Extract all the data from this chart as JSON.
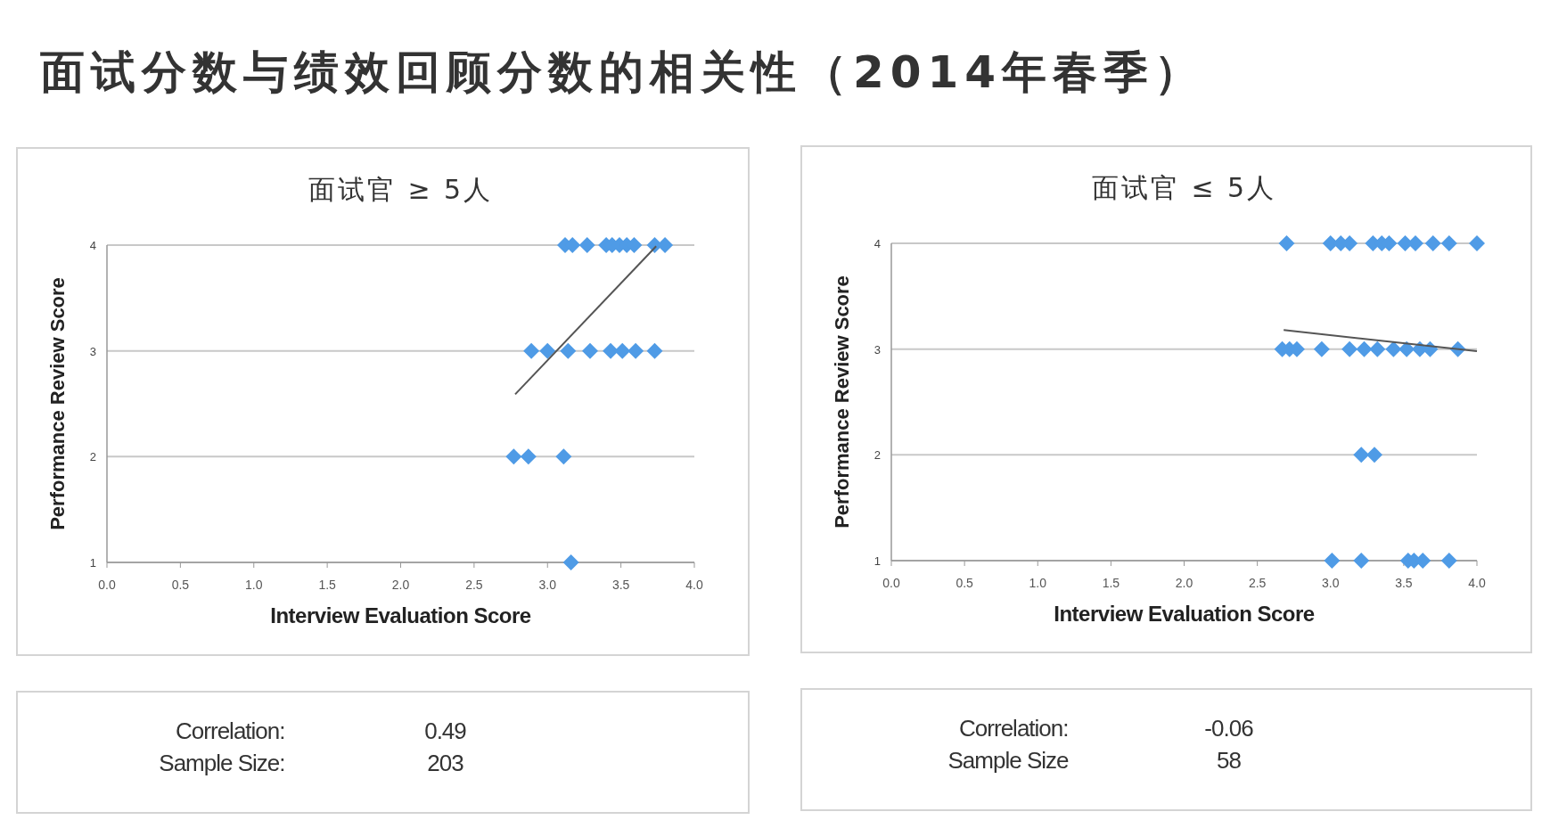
{
  "chart_data": [
    {
      "type": "other",
      "title": "面试分数与绩效回顾分数的相关性（2014年春季）"
    },
    {
      "type": "scatter",
      "title": "面试官 ≥ 5人",
      "xlabel": "Interview Evaluation Score",
      "ylabel": "Performance Review Score",
      "xlim": [
        0,
        4
      ],
      "ylim": [
        1,
        4
      ],
      "xticks": [
        {
          "value": 0,
          "label": "0.0"
        },
        {
          "value": 0.5,
          "label": "0.5"
        },
        {
          "value": 1,
          "label": "1.0"
        },
        {
          "value": 1.5,
          "label": "1.5"
        },
        {
          "value": 2,
          "label": "2.0"
        },
        {
          "value": 2.5,
          "label": "2.5"
        },
        {
          "value": 3,
          "label": "3.0"
        },
        {
          "value": 3.5,
          "label": "3.5"
        },
        {
          "value": 4,
          "label": "4.0"
        }
      ],
      "yticks": [
        1,
        2,
        3,
        4
      ],
      "grid": "y",
      "marker": "diamond",
      "series": [
        {
          "color": "#4f9be6",
          "x": [
            3.12,
            3.17,
            3.27,
            3.4,
            3.44,
            3.49,
            3.54,
            3.59,
            3.73,
            3.8,
            2.89,
            3.0,
            3.14,
            3.29,
            3.43,
            3.51,
            3.6,
            3.73,
            2.77,
            2.87,
            3.11,
            3.16
          ],
          "values": [
            4,
            4,
            4,
            4,
            4,
            4,
            4,
            4,
            4,
            4,
            3,
            3,
            3,
            3,
            3,
            3,
            3,
            3,
            2,
            2,
            2,
            1
          ]
        },
        {
          "type": "line",
          "color": "#555555",
          "marker": "none",
          "x": [
            2.78,
            3.74
          ],
          "values": [
            2.59,
            3.99
          ]
        }
      ]
    },
    {
      "type": "scatter",
      "title": "面试官 ≤ 5人",
      "xlabel": "Interview Evaluation Score",
      "ylabel": "Performance Review Score",
      "xlim": [
        0,
        4
      ],
      "ylim": [
        1,
        4
      ],
      "xticks": [
        {
          "value": 0,
          "label": "0.0"
        },
        {
          "value": 0.5,
          "label": "0.5"
        },
        {
          "value": 1,
          "label": "1.0"
        },
        {
          "value": 1.5,
          "label": "1.5"
        },
        {
          "value": 2,
          "label": "2.0"
        },
        {
          "value": 2.5,
          "label": "2.5"
        },
        {
          "value": 3,
          "label": "3.0"
        },
        {
          "value": 3.5,
          "label": "3.5"
        },
        {
          "value": 4,
          "label": "4.0"
        }
      ],
      "yticks": [
        1,
        2,
        3,
        4
      ],
      "grid": "y",
      "marker": "diamond",
      "series": [
        {
          "color": "#4f9be6",
          "x": [
            2.7,
            3.0,
            3.07,
            3.13,
            3.29,
            3.35,
            3.4,
            3.51,
            3.58,
            3.7,
            3.81,
            4.0,
            2.67,
            2.72,
            2.77,
            2.94,
            3.13,
            3.23,
            3.32,
            3.43,
            3.52,
            3.61,
            3.68,
            3.87,
            3.21,
            3.3,
            3.01,
            3.21,
            3.53,
            3.57,
            3.63,
            3.81
          ],
          "values": [
            4,
            4,
            4,
            4,
            4,
            4,
            4,
            4,
            4,
            4,
            4,
            4,
            3,
            3,
            3,
            3,
            3,
            3,
            3,
            3,
            3,
            3,
            3,
            3,
            2,
            2,
            1,
            1,
            1,
            1,
            1,
            1
          ]
        },
        {
          "type": "line",
          "color": "#555555",
          "marker": "none",
          "x": [
            2.68,
            4.0
          ],
          "values": [
            3.18,
            2.98
          ]
        }
      ]
    },
    {
      "type": "other",
      "annotations": [
        "Correlation:",
        "0.49",
        "Sample Size:",
        "203"
      ]
    },
    {
      "type": "other",
      "annotations": [
        "Correlation:",
        "-0.06",
        "Sample Size",
        "58"
      ]
    }
  ]
}
